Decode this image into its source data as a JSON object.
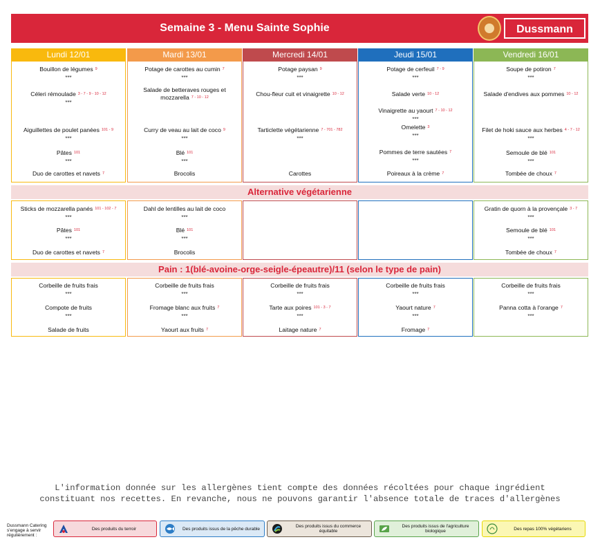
{
  "header": {
    "title": "Semaine 3 - Menu Sainte Sophie",
    "brand": "Dussmann"
  },
  "days": [
    {
      "label": "Lundi 12/01",
      "color": "#f9b90d",
      "main": [
        {
          "name": "Bouillon de légumes",
          "allergens": "9"
        },
        {
          "name": "Céleri rémoulade",
          "allergens": "3 - 7 - 9 - 10 - 12"
        },
        {
          "name": "Aiguillettes de poulet panées",
          "allergens": "101 - 9"
        },
        {
          "name": "Pâtes",
          "allergens": "101"
        },
        {
          "name": "Duo de carottes et navets",
          "allergens": "7"
        }
      ],
      "veg": [
        {
          "name": "Sticks de mozzarella panés",
          "allergens": "101 - 102 - 7"
        },
        {
          "name": "Pâtes",
          "allergens": "101"
        },
        {
          "name": "Duo de carottes et navets",
          "allergens": "7"
        }
      ],
      "dessert": [
        {
          "name": "Corbeille de fruits frais",
          "allergens": ""
        },
        {
          "name": "Compote de fruits",
          "allergens": ""
        },
        {
          "name": "Salade de fruits",
          "allergens": ""
        }
      ]
    },
    {
      "label": "Mardi 13/01",
      "color": "#f39a4a",
      "main": [
        {
          "name": "Potage de carottes au cumin",
          "allergens": "7"
        },
        {
          "name": "Salade de betteraves rouges et mozzarella",
          "allergens": "7 - 10 - 12"
        },
        {
          "name": "Curry de veau au lait de coco",
          "allergens": "9"
        },
        {
          "name": "Blé",
          "allergens": "101"
        },
        {
          "name": "Brocolis",
          "allergens": ""
        }
      ],
      "veg": [
        {
          "name": "Dahl de lentilles au lait de coco",
          "allergens": ""
        },
        {
          "name": "Blé",
          "allergens": "101"
        },
        {
          "name": "Brocolis",
          "allergens": ""
        }
      ],
      "dessert": [
        {
          "name": "Corbeille de fruits frais",
          "allergens": ""
        },
        {
          "name": "Fromage blanc aux fruits",
          "allergens": "7"
        },
        {
          "name": "Yaourt aux fruits",
          "allergens": "7"
        }
      ]
    },
    {
      "label": "Mercredi 14/01",
      "color": "#bf4a4d",
      "main": [
        {
          "name": "Potage paysan",
          "allergens": "9"
        },
        {
          "name": "Chou-fleur cuit et vinaigrette",
          "allergens": "10 - 12"
        },
        {
          "name": "Tarticlette végétarienne",
          "allergens": "7 - 701 - 782"
        },
        {
          "name": "Carottes",
          "allergens": ""
        }
      ],
      "veg": [],
      "dessert": [
        {
          "name": "Corbeille de fruits frais",
          "allergens": ""
        },
        {
          "name": "Tarte aux poires",
          "allergens": "101 - 3 - 7"
        },
        {
          "name": "Laitage nature",
          "allergens": "7"
        }
      ]
    },
    {
      "label": "Jeudi 15/01",
      "color": "#1f6fbd",
      "main": [
        {
          "name": "Potage de cerfeuil",
          "allergens": "7 - 9"
        },
        {
          "name": "Salade verte",
          "allergens": "10 - 12"
        },
        {
          "name": "Vinaigrette au yaourt",
          "allergens": "7 - 10 - 12"
        },
        {
          "name": "Omelette",
          "allergens": "3"
        },
        {
          "name": "Pommes de terre sautées",
          "allergens": "7"
        },
        {
          "name": "Poireaux à la crème",
          "allergens": "7"
        }
      ],
      "veg": [],
      "dessert": [
        {
          "name": "Corbeille de fruits frais",
          "allergens": ""
        },
        {
          "name": "Yaourt nature",
          "allergens": "7"
        },
        {
          "name": "Fromage",
          "allergens": "7"
        }
      ]
    },
    {
      "label": "Vendredi 16/01",
      "color": "#8cb755",
      "main": [
        {
          "name": "Soupe de potiron",
          "allergens": "7"
        },
        {
          "name": "Salade d'endives aux pommes",
          "allergens": "10 - 12"
        },
        {
          "name": "Filet de hoki sauce aux herbes",
          "allergens": "4 - 7 - 12"
        },
        {
          "name": "Semoule de blé",
          "allergens": "101"
        },
        {
          "name": "Tombée de choux",
          "allergens": "7"
        }
      ],
      "veg": [
        {
          "name": "Gratin de quorn à la provençale",
          "allergens": "3 - 7"
        },
        {
          "name": "Semoule de blé",
          "allergens": "101"
        },
        {
          "name": "Tombée de choux",
          "allergens": "7"
        }
      ],
      "dessert": [
        {
          "name": "Corbeille de fruits frais",
          "allergens": ""
        },
        {
          "name": "Panna cotta à l'orange",
          "allergens": "7"
        }
      ]
    }
  ],
  "separator": "***",
  "bands": {
    "vegetarian": "Alternative végétarienne",
    "bread": "Pain : 1(blé-avoine-orge-seigle-épeautre)/11 (selon le type de pain)"
  },
  "disclaimer": {
    "line1": "L'information donnée sur les allergènes tient compte des données récoltées pour chaque ingrédient",
    "line2": "constituant nos recettes. En revanche, nous ne pouvons garantir l'absence totale de traces d'allergènes"
  },
  "legend": {
    "label": "Dussmann Catering s'engage à servir régulièrement :",
    "items": [
      {
        "text": "Des produits du terroir",
        "icon": "terroir-icon",
        "color": "#d9263a",
        "bg": "#f7d9dc"
      },
      {
        "text": "Des produits issus de la pêche durable",
        "icon": "fish-icon",
        "color": "#2d7dc6",
        "bg": "#dbe9f6"
      },
      {
        "text": "Des produits issus du commerce équitable",
        "icon": "fairtrade-icon",
        "color": "#6a5a4a",
        "bg": "#ece5dc"
      },
      {
        "text": "Des produits issus de l'agriculture biologique",
        "icon": "organic-leaf-icon",
        "color": "#59a44a",
        "bg": "#e0f0da"
      },
      {
        "text": "Des repas 100% végétariens",
        "icon": "veggie-icon",
        "color": "#e6d800",
        "bg": "#fbf7b4"
      }
    ]
  }
}
